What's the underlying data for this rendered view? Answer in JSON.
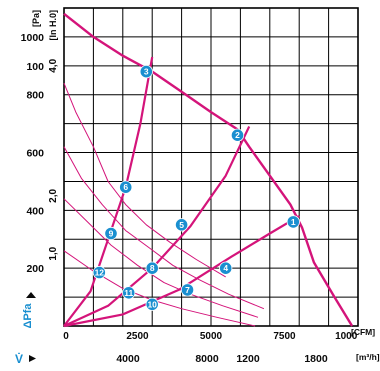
{
  "chart_data": {
    "type": "line",
    "title": "",
    "axes": {
      "y_primary": {
        "unit": "[Pa]",
        "ticks": [
          "100",
          "200",
          "400",
          "600",
          "800",
          "1000"
        ],
        "range": [
          0,
          1100
        ]
      },
      "y_secondary": {
        "unit": "[In H.0]",
        "ticks": [
          "1,0",
          "2,0",
          "4,0"
        ]
      },
      "x_primary": {
        "unit": "[CFM]",
        "ticks": [
          "0",
          "2500",
          "5000",
          "7500",
          "1000"
        ],
        "range": [
          0,
          10000
        ]
      },
      "x_secondary": {
        "unit": "[m³/h]",
        "ticks": [
          "4000",
          "8000",
          "1200",
          "1800"
        ]
      },
      "y_arrow_label": "ΔPfa",
      "x_arrow_label": "V̇"
    },
    "grid": true,
    "series": [
      {
        "kind": "fan-curve",
        "color": "#d4147a",
        "x": [
          0,
          1000,
          2000,
          3000,
          4000,
          5000,
          5900,
          6300,
          7000,
          7700,
          8100,
          8500,
          9200,
          9800
        ],
        "y": [
          1080,
          1000,
          935,
          880,
          810,
          740,
          680,
          620,
          520,
          420,
          340,
          220,
          100,
          0
        ]
      },
      {
        "kind": "system-curve",
        "color": "#d4147a",
        "x": [
          0,
          900,
          1500,
          2100,
          2600,
          3000
        ],
        "y": [
          0,
          120,
          300,
          480,
          700,
          930
        ]
      },
      {
        "kind": "system-curve",
        "color": "#d4147a",
        "x": [
          0,
          1500,
          3000,
          4300,
          5500,
          6300
        ],
        "y": [
          0,
          70,
          200,
          345,
          520,
          690
        ]
      },
      {
        "kind": "system-curve",
        "color": "#d4147a",
        "x": [
          0,
          2000,
          3900,
          5700,
          7000,
          8000
        ],
        "y": [
          0,
          40,
          125,
          240,
          320,
          380
        ]
      },
      {
        "kind": "resistance",
        "color": "#d4147a",
        "x": [
          0,
          400,
          1000,
          1500,
          2100,
          2800,
          3600,
          4500,
          5500
        ],
        "y": [
          840,
          740,
          620,
          500,
          420,
          350,
          290,
          230,
          170
        ]
      },
      {
        "kind": "resistance",
        "color": "#d4147a",
        "x": [
          0,
          600,
          1300,
          2100,
          2900,
          3700,
          4600,
          5600,
          6800
        ],
        "y": [
          620,
          510,
          420,
          330,
          270,
          210,
          160,
          110,
          60
        ]
      },
      {
        "kind": "resistance",
        "color": "#d4147a",
        "x": [
          0,
          800,
          1600,
          2500,
          3400,
          4300,
          5400,
          6600
        ],
        "y": [
          440,
          360,
          280,
          210,
          150,
          110,
          70,
          30
        ]
      },
      {
        "kind": "resistance",
        "color": "#d4147a",
        "x": [
          0,
          1000,
          2000,
          3000,
          4000,
          5200,
          6500
        ],
        "y": [
          260,
          190,
          130,
          90,
          60,
          30,
          0
        ]
      }
    ],
    "operating_points": [
      {
        "label": "1",
        "x": 7800,
        "y": 360
      },
      {
        "label": "2",
        "x": 5900,
        "y": 660
      },
      {
        "label": "3",
        "x": 2800,
        "y": 880
      },
      {
        "label": "4",
        "x": 5500,
        "y": 200
      },
      {
        "label": "5",
        "x": 4000,
        "y": 350
      },
      {
        "label": "6",
        "x": 2100,
        "y": 480
      },
      {
        "label": "7",
        "x": 4200,
        "y": 125
      },
      {
        "label": "8",
        "x": 3000,
        "y": 200
      },
      {
        "label": "9",
        "x": 1600,
        "y": 320
      },
      {
        "label": "10",
        "x": 3000,
        "y": 75
      },
      {
        "label": "11",
        "x": 2200,
        "y": 115
      },
      {
        "label": "12",
        "x": 1200,
        "y": 185
      }
    ],
    "colors": {
      "curve": "#d4147a",
      "badge": "#1a8fd0",
      "grid": "#000000",
      "text": "#0a0a0a"
    }
  }
}
